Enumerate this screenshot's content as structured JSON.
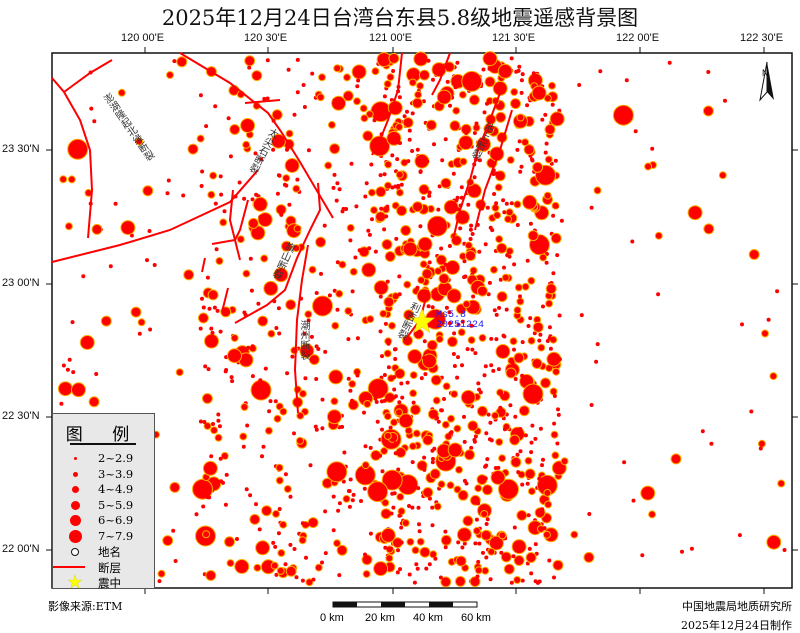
{
  "title": "2025年12月24日台湾台东县5.8级地震遥感背景图",
  "axes": {
    "x_ticks": [
      "120 00'E",
      "120 30'E",
      "121 00'E",
      "121 30'E",
      "122 00'E",
      "122 30'E"
    ],
    "y_ticks": [
      "23 30'N",
      "23 00'N",
      "22 30'N",
      "22 00'N"
    ]
  },
  "legend": {
    "title": "图 例",
    "items": [
      {
        "label": "2~2.9",
        "symbol": "dot"
      },
      {
        "label": "3~3.9",
        "symbol": "dot"
      },
      {
        "label": "4~4.9",
        "symbol": "dot"
      },
      {
        "label": "5~5.9",
        "symbol": "dot"
      },
      {
        "label": "6~6.9",
        "symbol": "dot"
      },
      {
        "label": "7~7.9",
        "symbol": "dot"
      },
      {
        "label": "地名",
        "symbol": "circle"
      },
      {
        "label": "断层",
        "symbol": "line"
      },
      {
        "label": "震中",
        "symbol": "star"
      }
    ]
  },
  "epicenter": {
    "magnitude": "Ms5.8",
    "date": "20251224"
  },
  "faults": [
    "澎湖隆起北缘断裂",
    "太尖石断裂",
    "旗山断裂",
    "潮州断裂",
    "池上断裂",
    "利吉断裂"
  ],
  "scale": {
    "labels": [
      "0 km",
      "20 km",
      "40 km",
      "60 km"
    ]
  },
  "footer": {
    "source": "影像来源:ETM",
    "org": "中国地震局地质研究所",
    "date": "2025年12月24日制作"
  },
  "colors": {
    "quake_fill": "#ff0000",
    "quake_edge": "#ffb000",
    "fault": "#ff0000",
    "epicenter": "#ffff00",
    "epi_label": "#1a1aff"
  }
}
